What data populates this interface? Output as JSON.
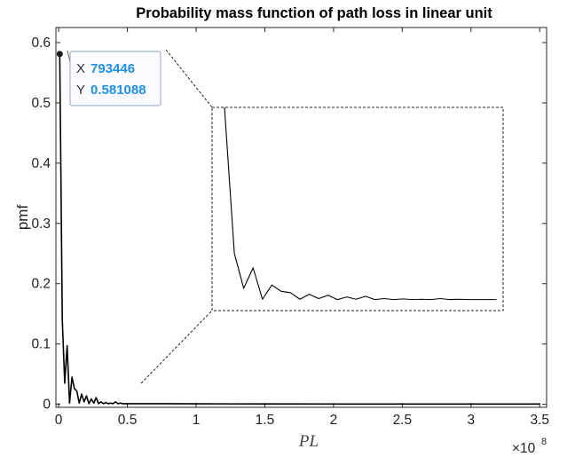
{
  "chart_data": {
    "type": "line",
    "title": "Probability mass function of path loss in linear unit",
    "xlabel": "PL",
    "ylabel": "pmf",
    "xlim": [
      -0.02,
      3.55
    ],
    "ylim": [
      -0.005,
      0.625
    ],
    "x_scale_note": "×10^8",
    "x_exponent_base": "×10",
    "x_exponent_power": "8",
    "x_ticks": [
      0,
      0.5,
      1,
      1.5,
      2,
      2.5,
      3,
      3.5
    ],
    "x_tick_labels": [
      "0",
      "0.5",
      "1",
      "1.5",
      "2",
      "2.5",
      "3",
      "3.5"
    ],
    "y_ticks": [
      0,
      0.1,
      0.2,
      0.3,
      0.4,
      0.5,
      0.6
    ],
    "y_tick_labels": [
      "0",
      "0.1",
      "0.2",
      "0.3",
      "0.4",
      "0.5",
      "0.6"
    ],
    "grid": false,
    "line_color": "#000000",
    "series": [
      {
        "x": [
          0.00793446,
          0.0265,
          0.0441,
          0.0617,
          0.0793,
          0.0969,
          0.1145,
          0.1321,
          0.1497,
          0.1673,
          0.1849,
          0.2025,
          0.2201,
          0.2377,
          0.2553,
          0.2729,
          0.2905,
          0.3081,
          0.3257,
          0.3433,
          0.3609,
          0.3785,
          0.3961,
          0.4137,
          0.4313,
          0.4489,
          0.4665,
          0.4841,
          0.5017,
          0.5193,
          0.6,
          0.8,
          1.0,
          1.5,
          2.0,
          2.5,
          3.0,
          3.5
        ],
        "y": [
          0.581088,
          0.14,
          0.035,
          0.097,
          0.002,
          0.045,
          0.026,
          0.022,
          0.002,
          0.017,
          0.004,
          0.014,
          0.001,
          0.009,
          0.002,
          0.011,
          0.001,
          0.004,
          0.001,
          0.003,
          0.001,
          0.002,
          0.001,
          0.004,
          0.001,
          0.002,
          0.001,
          0.001,
          0.001,
          0.001,
          0.001,
          0.001,
          0.0008,
          0.0006,
          0.0005,
          0.0004,
          0.0004,
          0.0004
        ]
      }
    ],
    "datatip": {
      "x_key": "X",
      "x_value": "793446",
      "y_key": "Y",
      "y_value": "0.581088",
      "value_color": "#1e90e8"
    },
    "inset": {
      "border": "dashed",
      "x_range": [
        0.00793446,
        0.52
      ],
      "y_range": [
        0,
        0.581088
      ]
    }
  }
}
